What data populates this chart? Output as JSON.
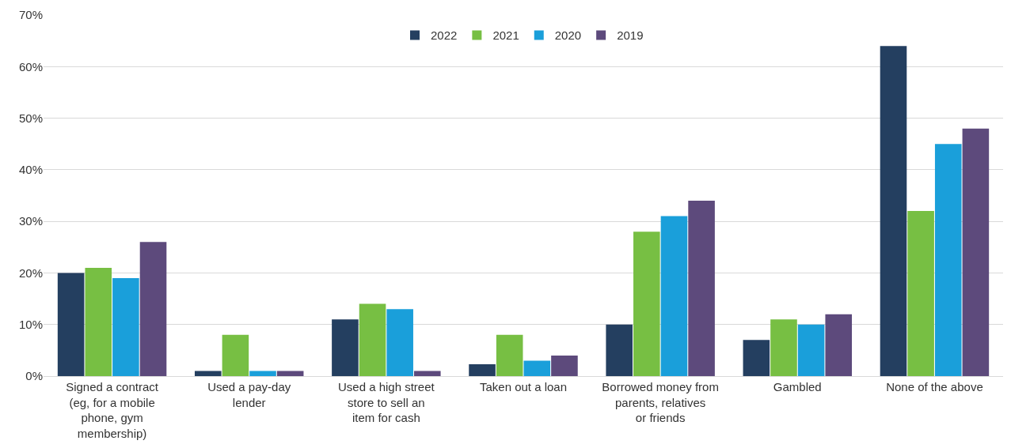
{
  "chart_data": {
    "type": "bar",
    "categories": [
      "Signed a contract (eg, for a mobile phone, gym membership)",
      "Used a pay-day lender",
      "Used a high street store to sell an item for cash",
      "Taken out a loan",
      "Borrowed money from parents, relatives or friends",
      "Gambled",
      "None of the above"
    ],
    "series": [
      {
        "name": "2022",
        "color": "#243f60",
        "values": [
          20,
          1,
          11,
          2.3,
          10,
          7,
          64
        ]
      },
      {
        "name": "2021",
        "color": "#77bf43",
        "values": [
          21,
          8,
          14,
          8,
          28,
          11,
          32
        ]
      },
      {
        "name": "2020",
        "color": "#1a9fda",
        "values": [
          19,
          1,
          13,
          3,
          31,
          10,
          45
        ]
      },
      {
        "name": "2019",
        "color": "#5d4a7c",
        "values": [
          26,
          1,
          1,
          4,
          34,
          12,
          48
        ]
      }
    ],
    "ylim": [
      0,
      70
    ],
    "yticks": [
      {
        "value": 0,
        "label": "0%"
      },
      {
        "value": 10,
        "label": "10%"
      },
      {
        "value": 20,
        "label": "20%"
      },
      {
        "value": 30,
        "label": "30%"
      },
      {
        "value": 40,
        "label": "40%"
      },
      {
        "value": 50,
        "label": "50%"
      },
      {
        "value": 60,
        "label": "60%"
      },
      {
        "value": 70,
        "label": "70%"
      }
    ],
    "grid": "y",
    "legend": "top"
  }
}
